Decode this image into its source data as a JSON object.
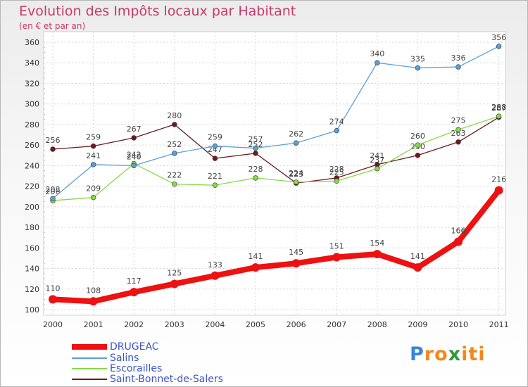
{
  "chart_data": {
    "type": "line",
    "title": "Evolution des Impôts locaux par Habitant",
    "subtitle": "(en € et par an)",
    "categories": [
      "2000",
      "2001",
      "2002",
      "2003",
      "2004",
      "2005",
      "2006",
      "2007",
      "2008",
      "2009",
      "2010",
      "2011"
    ],
    "ylim": [
      100,
      360
    ],
    "yticks": [
      100,
      120,
      140,
      160,
      180,
      200,
      220,
      240,
      260,
      280,
      300,
      320,
      340,
      360
    ],
    "grid": true,
    "series": [
      {
        "name": "Saint-Bonnet-de-Salers",
        "color": "#6b1a22",
        "values": [
          256,
          259,
          267,
          280,
          247,
          252,
          223,
          228,
          241,
          250,
          263,
          287
        ]
      },
      {
        "name": "Escorailles",
        "color": "#88d848",
        "values": [
          206,
          209,
          242,
          222,
          221,
          228,
          224,
          225,
          237,
          260,
          275,
          288
        ]
      },
      {
        "name": "Salins",
        "color": "#5aa0d8",
        "values": [
          208,
          241,
          240,
          252,
          259,
          257,
          262,
          274,
          340,
          335,
          336,
          356
        ]
      },
      {
        "name": "DRUGEAC",
        "color": "#ee1111",
        "values": [
          110,
          108,
          117,
          125,
          133,
          141,
          145,
          151,
          154,
          141,
          166,
          216
        ]
      }
    ]
  },
  "legend": {
    "items": [
      {
        "name": "DRUGEAC",
        "color": "#ee1111"
      },
      {
        "name": "Salins",
        "color": "#5aa0d8"
      },
      {
        "name": "Escorailles",
        "color": "#88d848"
      },
      {
        "name": "Saint-Bonnet-de-Salers",
        "color": "#6b1a22"
      }
    ]
  },
  "brand": {
    "letters": [
      "P",
      "r",
      "o",
      "x",
      "i",
      "t",
      "i"
    ],
    "colors": [
      "#3a86d8",
      "#f08a1c",
      "#f08a1c",
      "#2f9a3a",
      "#f08a1c",
      "#f08a1c",
      "#f08a1c"
    ]
  }
}
